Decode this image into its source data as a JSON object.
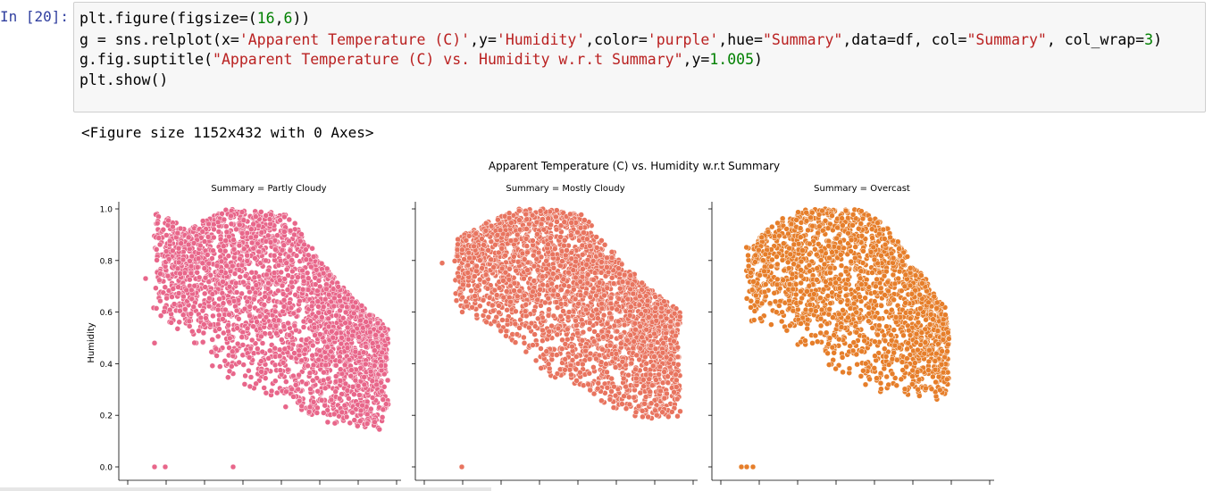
{
  "cell": {
    "prompt": "In [20]:",
    "code": {
      "line1": {
        "a": "plt.figure(figsize=(",
        "n1": "16",
        "b": ",",
        "n2": "6",
        "c": "))"
      },
      "line2": {
        "a": "g = sns.relplot(x=",
        "s1": "'Apparent Temperature (C)'",
        "b": ",y=",
        "s2": "'Humidity'",
        "c": ",color=",
        "s3": "'purple'",
        "d": ",hue=",
        "s4": "\"Summary\"",
        "e": ",data=df, col=",
        "s5": "\"Summary\"",
        "f": ", col_wrap=",
        "n": "3",
        "g": ")"
      },
      "line3": {
        "a": "g.fig.suptitle(",
        "s": "\"Apparent Temperature (C) vs. Humidity w.r.t Summary\"",
        "b": ",y=",
        "n": "1.005",
        "c": ")"
      },
      "line4": "plt.show()"
    },
    "output_text": "<Figure size 1152x432 with 0 Axes>"
  },
  "chart_data": {
    "type": "scatter",
    "suptitle": "Apparent Temperature (C) vs. Humidity w.r.t Summary",
    "ylabel": "Humidity",
    "xlabel": "",
    "ylim": [
      0,
      1.0
    ],
    "y_ticks": [
      "0.0",
      "0.2",
      "0.4",
      "0.6",
      "0.8",
      "1.0"
    ],
    "panels": [
      {
        "title": "Summary = Partly Cloudy",
        "color": "#e8668a"
      },
      {
        "title": "Summary = Mostly Cloudy",
        "color": "#e8745f"
      },
      {
        "title": "Summary = Overcast",
        "color": "#e67e2a"
      }
    ]
  }
}
